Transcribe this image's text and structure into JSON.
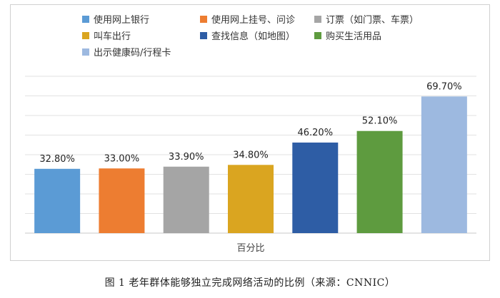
{
  "chart_data": {
    "type": "bar",
    "categories": [
      "百分比"
    ],
    "xlabel": "百分比",
    "ylim": [
      0,
      80
    ],
    "grid": true,
    "legend_placement": "top",
    "series": [
      {
        "name": "使用网上银行",
        "values": [
          32.8
        ],
        "label": "32.80%",
        "color": "#5B9BD5"
      },
      {
        "name": "使用网上挂号、问诊",
        "values": [
          33.0
        ],
        "label": "33.00%",
        "color": "#ED7D31"
      },
      {
        "name": "订票（如门票、车票）",
        "values": [
          33.9
        ],
        "label": "33.90%",
        "color": "#A5A5A5"
      },
      {
        "name": "叫车出行",
        "values": [
          34.8
        ],
        "label": "34.80%",
        "color": "#DAA520"
      },
      {
        "name": "查找信息（如地图）",
        "values": [
          46.2
        ],
        "label": "46.20%",
        "color": "#2E5DA5"
      },
      {
        "name": "购买生活用品",
        "values": [
          52.1
        ],
        "label": "52.10%",
        "color": "#5E9B3F"
      },
      {
        "name": "出示健康码/行程卡",
        "values": [
          69.7
        ],
        "label": "69.70%",
        "color": "#9DB9E0"
      }
    ]
  },
  "caption": "图 1  老年群体能够独立完成网络活动的比例（来源：CNNIC）"
}
